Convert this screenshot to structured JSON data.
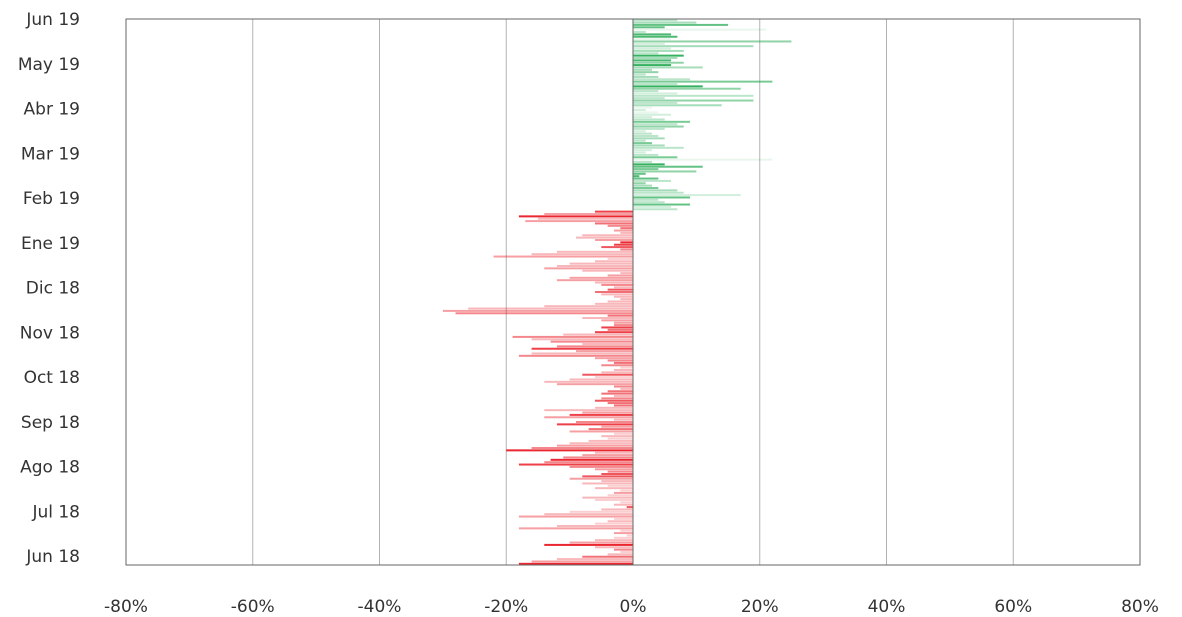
{
  "chart_data": {
    "type": "bar",
    "orientation": "horizontal",
    "title": "",
    "xlabel": "",
    "ylabel": "",
    "xlim": [
      -80,
      80
    ],
    "x_ticks": [
      -80,
      -60,
      -40,
      -20,
      0,
      20,
      40,
      60,
      80
    ],
    "x_tick_labels": [
      "-80%",
      "-60%",
      "-40%",
      "-20%",
      "0%",
      "20%",
      "40%",
      "60%",
      "80%"
    ],
    "y_tick_labels": [
      "Jun 19",
      "May 19",
      "Abr 19",
      "Mar 19",
      "Feb 19",
      "Ene 19",
      "Dic 18",
      "Nov 18",
      "Oct 18",
      "Sep 18",
      "Ago 18",
      "Jul 18",
      "Jun 18"
    ],
    "grid": true,
    "legend": "none",
    "colors": {
      "positive": "#1fa84f",
      "negative": "#e8101a",
      "grid": "#b3b3b3",
      "axis": "#666666"
    },
    "n_bars": 248,
    "bars": [
      [
        -18,
        0.9
      ],
      [
        -16,
        0.4
      ],
      [
        -12,
        0.3
      ],
      [
        -8,
        0.6
      ],
      [
        -4,
        0.3
      ],
      [
        -2,
        0.2
      ],
      [
        -3,
        0.5
      ],
      [
        -6,
        0.3
      ],
      [
        -14,
        0.9
      ],
      [
        -10,
        0.4
      ],
      [
        -6,
        0.3
      ],
      [
        -3,
        0.2
      ],
      [
        -1,
        0.2
      ],
      [
        -3,
        0.4
      ],
      [
        -2,
        0.2
      ],
      [
        -18,
        0.4
      ],
      [
        -12,
        0.3
      ],
      [
        -6,
        0.2
      ],
      [
        -4,
        0.3
      ],
      [
        -3,
        0.2
      ],
      [
        -18,
        0.4
      ],
      [
        -14,
        0.3
      ],
      [
        -10,
        0.2
      ],
      [
        -5,
        0.3
      ],
      [
        -1,
        0.7
      ],
      [
        -3,
        0.3
      ],
      [
        -2,
        0.2
      ],
      [
        -6,
        0.2
      ],
      [
        -8,
        0.3
      ],
      [
        -4,
        0.2
      ],
      [
        -3,
        0.4
      ],
      [
        -2,
        0.2
      ],
      [
        -6,
        0.3
      ],
      [
        -4,
        0.2
      ],
      [
        -8,
        0.3
      ],
      [
        -5,
        0.3
      ],
      [
        -10,
        0.4
      ],
      [
        -8,
        0.7
      ],
      [
        -5,
        0.7
      ],
      [
        -4,
        0.5
      ],
      [
        -6,
        0.4
      ],
      [
        -10,
        0.5
      ],
      [
        -18,
        0.8
      ],
      [
        -14,
        0.5
      ],
      [
        -13,
        0.9
      ],
      [
        -11,
        0.5
      ],
      [
        -8,
        0.4
      ],
      [
        -6,
        0.3
      ],
      [
        -20,
        0.9
      ],
      [
        -16,
        0.5
      ],
      [
        -12,
        0.4
      ],
      [
        -10,
        0.3
      ],
      [
        -7,
        0.3
      ],
      [
        -4,
        0.2
      ],
      [
        -5,
        0.3
      ],
      [
        -3,
        0.2
      ],
      [
        -10,
        0.4
      ],
      [
        -7,
        0.6
      ],
      [
        -5,
        0.4
      ],
      [
        -12,
        0.8
      ],
      [
        -9,
        0.5
      ],
      [
        -3,
        0.3
      ],
      [
        -14,
        0.4
      ],
      [
        -10,
        0.8
      ],
      [
        -8,
        0.4
      ],
      [
        -14,
        0.3
      ],
      [
        -6,
        0.3
      ],
      [
        -3,
        0.6
      ],
      [
        -4,
        0.6
      ],
      [
        -6,
        0.7
      ],
      [
        -5,
        0.5
      ],
      [
        -3,
        0.3
      ],
      [
        -5,
        0.6
      ],
      [
        -4,
        0.6
      ],
      [
        -2,
        0.3
      ],
      [
        -3,
        0.5
      ],
      [
        -12,
        0.4
      ],
      [
        -14,
        0.3
      ],
      [
        -10,
        0.3
      ],
      [
        -6,
        0.2
      ],
      [
        -8,
        0.7
      ],
      [
        -5,
        0.3
      ],
      [
        -3,
        0.3
      ],
      [
        -2,
        0.2
      ],
      [
        -5,
        0.5
      ],
      [
        -3,
        0.6
      ],
      [
        -4,
        0.5
      ],
      [
        -6,
        0.4
      ],
      [
        -18,
        0.5
      ],
      [
        -16,
        0.3
      ],
      [
        -9,
        0.4
      ],
      [
        -16,
        0.8
      ],
      [
        -12,
        0.5
      ],
      [
        -8,
        0.3
      ],
      [
        -13,
        0.5
      ],
      [
        -16,
        0.3
      ],
      [
        -19,
        0.5
      ],
      [
        -11,
        0.3
      ],
      [
        -6,
        0.8
      ],
      [
        -4,
        0.6
      ],
      [
        -5,
        0.8
      ],
      [
        -3,
        0.5
      ],
      [
        -3,
        0.4
      ],
      [
        -5,
        0.4
      ],
      [
        -8,
        0.3
      ],
      [
        -4,
        0.6
      ],
      [
        -28,
        0.5
      ],
      [
        -30,
        0.4
      ],
      [
        -26,
        0.3
      ],
      [
        -14,
        0.3
      ],
      [
        -6,
        0.3
      ],
      [
        -4,
        0.3
      ],
      [
        -2,
        0.3
      ],
      [
        -3,
        0.3
      ],
      [
        -5,
        0.3
      ],
      [
        -6,
        0.6
      ],
      [
        -4,
        0.7
      ],
      [
        -3,
        0.3
      ],
      [
        -5,
        0.5
      ],
      [
        -6,
        0.3
      ],
      [
        -12,
        0.4
      ],
      [
        -10,
        0.4
      ],
      [
        -4,
        0.4
      ],
      [
        -2,
        0.3
      ],
      [
        -8,
        0.3
      ],
      [
        -14,
        0.4
      ],
      [
        -12,
        0.3
      ],
      [
        -10,
        0.3
      ],
      [
        -6,
        0.3
      ],
      [
        -4,
        0.2
      ],
      [
        -22,
        0.4
      ],
      [
        -16,
        0.3
      ],
      [
        -12,
        0.3
      ],
      [
        -2,
        0.5
      ],
      [
        -5,
        0.7
      ],
      [
        -3,
        0.8
      ],
      [
        -2,
        0.9
      ],
      [
        -6,
        0.4
      ],
      [
        -9,
        0.3
      ],
      [
        -8,
        0.3
      ],
      [
        -2,
        0.3
      ],
      [
        -3,
        0.4
      ],
      [
        -2,
        0.6
      ],
      [
        -4,
        0.5
      ],
      [
        -6,
        0.6
      ],
      [
        -17,
        0.4
      ],
      [
        -15,
        0.3
      ],
      [
        -18,
        0.9
      ],
      [
        -14,
        0.4
      ],
      [
        -6,
        0.8
      ],
      [
        7,
        0.3
      ],
      [
        6,
        0.2
      ],
      [
        9,
        0.7
      ],
      [
        5,
        0.3
      ],
      [
        4,
        0.3
      ],
      [
        9,
        0.7
      ],
      [
        17,
        0.2
      ],
      [
        8,
        0.3
      ],
      [
        7,
        0.4
      ],
      [
        4,
        0.6
      ],
      [
        3,
        0.4
      ],
      [
        2,
        0.5
      ],
      [
        6,
        0.3
      ],
      [
        4,
        0.7
      ],
      [
        1,
        0.8
      ],
      [
        2,
        0.7
      ],
      [
        10,
        0.5
      ],
      [
        4,
        0.6
      ],
      [
        11,
        0.7
      ],
      [
        5,
        0.9
      ],
      [
        3,
        0.3
      ],
      [
        22,
        0.1
      ],
      [
        7,
        0.6
      ],
      [
        4,
        0.3
      ],
      [
        2,
        0.2
      ],
      [
        3,
        0.2
      ],
      [
        8,
        0.3
      ],
      [
        5,
        0.4
      ],
      [
        3,
        0.6
      ],
      [
        2,
        0.3
      ],
      [
        5,
        0.4
      ],
      [
        4,
        0.3
      ],
      [
        3,
        0.3
      ],
      [
        2,
        0.2
      ],
      [
        5,
        0.3
      ],
      [
        8,
        0.5
      ],
      [
        7,
        0.3
      ],
      [
        9,
        0.6
      ],
      [
        5,
        0.3
      ],
      [
        3,
        0.2
      ],
      [
        6,
        0.2
      ],
      [
        4,
        0.1
      ],
      [
        2,
        0.2
      ],
      [
        3,
        0.1
      ],
      [
        14,
        0.4
      ],
      [
        7,
        0.3
      ],
      [
        19,
        0.5
      ],
      [
        5,
        0.3
      ],
      [
        19,
        0.3
      ],
      [
        7,
        0.2
      ],
      [
        4,
        0.3
      ],
      [
        17,
        0.5
      ],
      [
        11,
        0.9
      ],
      [
        7,
        0.3
      ],
      [
        22,
        0.6
      ],
      [
        9,
        0.3
      ],
      [
        4,
        0.4
      ],
      [
        2,
        0.3
      ],
      [
        4,
        0.5
      ],
      [
        3,
        0.4
      ],
      [
        11,
        0.4
      ],
      [
        6,
        0.9
      ],
      [
        8,
        0.5
      ],
      [
        6,
        0.8
      ],
      [
        7,
        0.4
      ],
      [
        8,
        0.9
      ],
      [
        4,
        0.3
      ],
      [
        8,
        0.4
      ],
      [
        6,
        0.2
      ],
      [
        19,
        0.4
      ],
      [
        5,
        0.2
      ],
      [
        25,
        0.5
      ],
      [
        6,
        0.1
      ],
      [
        7,
        0.8
      ],
      [
        6,
        0.8
      ],
      [
        2,
        0.3
      ],
      [
        21,
        0.1
      ],
      [
        5,
        0.7
      ],
      [
        15,
        0.7
      ],
      [
        10,
        0.4
      ],
      [
        7,
        0.3
      ]
    ]
  },
  "axis_text": {
    "y": [
      "Jun 19",
      "May 19",
      "Abr 19",
      "Mar 19",
      "Feb 19",
      "Ene 19",
      "Dic 18",
      "Nov 18",
      "Oct 18",
      "Sep 18",
      "Ago 18",
      "Jul 18",
      "Jun 18"
    ],
    "x": [
      "-80%",
      "-60%",
      "-40%",
      "-20%",
      "0%",
      "20%",
      "40%",
      "60%",
      "80%"
    ]
  }
}
